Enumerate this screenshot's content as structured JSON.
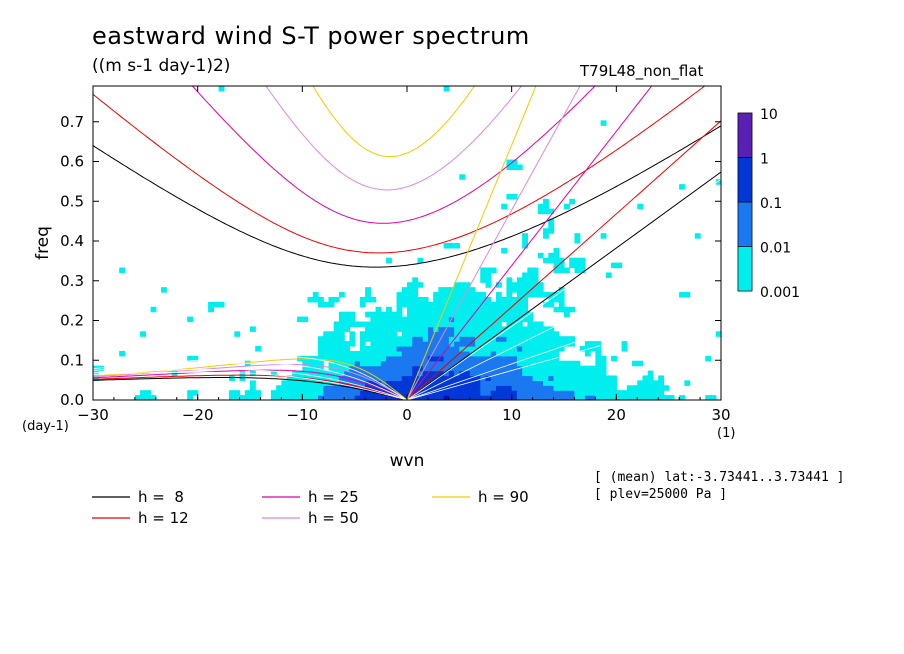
{
  "chart_data": {
    "type": "heatmap",
    "title": "eastward wind S-T power spectrum",
    "subtitle": "((m s-1 day-1)2)",
    "run_label": "T79L48_non_flat",
    "xlabel": "wvn",
    "ylabel": "freq",
    "x_unit": "(1)",
    "y_unit": "(day-1)",
    "xlim": [
      -30,
      30
    ],
    "ylim": [
      0,
      0.79
    ],
    "xticks": [
      -30,
      -20,
      -10,
      0,
      10,
      20,
      30
    ],
    "yticks": [
      0.0,
      0.1,
      0.2,
      0.3,
      0.4,
      0.5,
      0.6,
      0.7
    ],
    "ytick_labels": [
      "0.0",
      "0.1",
      "0.2",
      "0.3",
      "0.4",
      "0.5",
      "0.6",
      "0.7"
    ],
    "colorbar": {
      "levels": [
        "10",
        "1",
        "0.1",
        "0.01",
        "0.001"
      ],
      "colors": [
        "#5a1fb5",
        "#0a0ab4",
        "#0038d8",
        "#1a78f0",
        "#00eeee"
      ]
    },
    "shading_colors": {
      "lt_0_01": "#00eeee",
      "lt_0_1": "#1a78f0",
      "lt_1": "#0038d8",
      "lt_10": "#0a0ab4"
    },
    "dispersion_curves": [
      {
        "label": "h =  8",
        "h": 8,
        "color": "#000000"
      },
      {
        "label": "h = 12",
        "h": 12,
        "color": "#ee0000"
      },
      {
        "label": "h = 25",
        "h": 25,
        "color": "#dd00aa"
      },
      {
        "label": "h = 50",
        "h": 50,
        "color": "#dd88dd"
      },
      {
        "label": "h = 90",
        "h": 90,
        "color": "#eecc00"
      }
    ],
    "kelvin_white_h": [
      8,
      12,
      25,
      50
    ],
    "info_lines": [
      "[ (mean) lat:-3.73441..3.73441 ]",
      "[ plev=25000 Pa ]"
    ]
  }
}
